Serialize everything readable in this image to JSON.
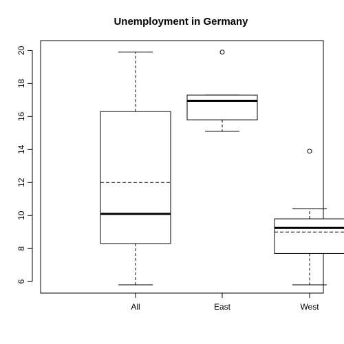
{
  "chart_data": {
    "type": "box",
    "title": "Unemployment in Germany",
    "xlabel": "",
    "ylabel": "",
    "categories": [
      "All",
      "East",
      "West"
    ],
    "ylim": [
      5.3,
      20.6
    ],
    "y_ticks": [
      6,
      8,
      10,
      12,
      14,
      16,
      18,
      20
    ],
    "boxes": [
      {
        "category": "All",
        "whisker_low": 5.8,
        "q1": 8.3,
        "median": 10.1,
        "mean": 12.0,
        "q3": 16.3,
        "whisker_high": 19.9,
        "outliers": []
      },
      {
        "category": "East",
        "whisker_low": 15.1,
        "q1": 15.8,
        "median": 16.95,
        "mean": 16.95,
        "q3": 17.3,
        "whisker_high": 17.3,
        "outliers": [
          19.9
        ]
      },
      {
        "category": "West",
        "whisker_low": 5.8,
        "q1": 7.7,
        "median": 9.25,
        "mean": 9.0,
        "q3": 9.8,
        "whisker_high": 10.4,
        "outliers": [
          13.9
        ]
      }
    ],
    "grid": false,
    "legend": "none"
  }
}
